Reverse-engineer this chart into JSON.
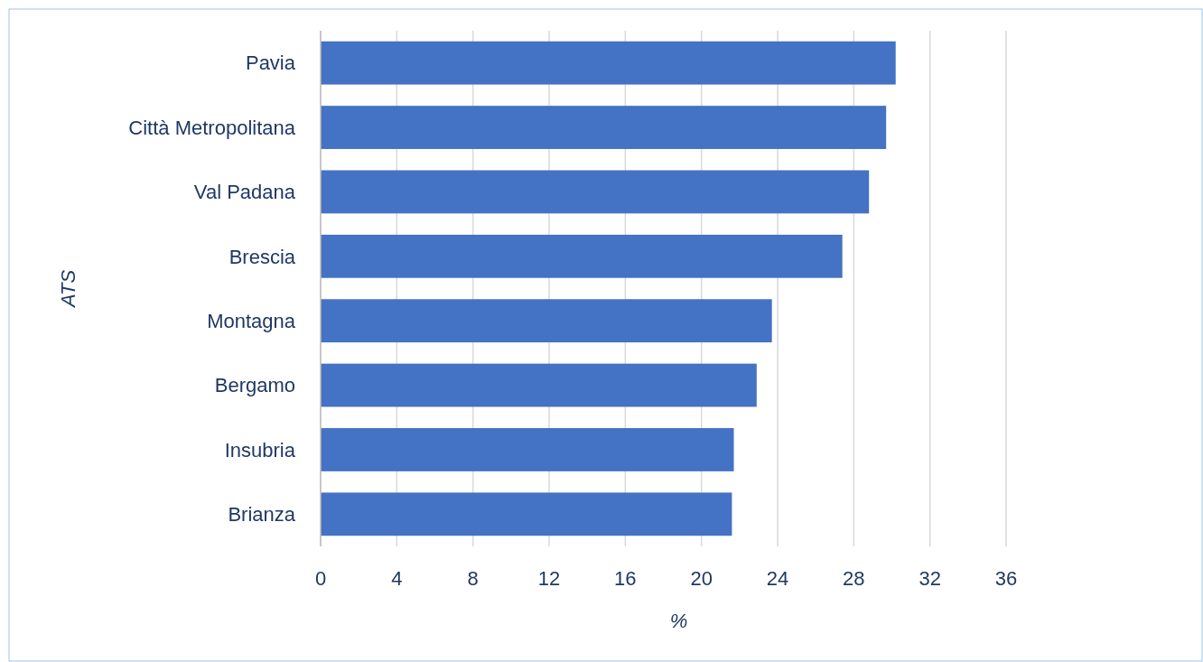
{
  "chart_data": {
    "type": "bar",
    "orientation": "horizontal",
    "xlabel": "%",
    "ylabel": "ATS",
    "categories": [
      "Pavia",
      "Città Metropolitana",
      "Val Padana",
      "Brescia",
      "Montagna",
      "Bergamo",
      "Insubria",
      "Brianza"
    ],
    "values": [
      30.2,
      29.7,
      28.8,
      27.4,
      23.7,
      22.9,
      21.7,
      21.6
    ],
    "color": "#4472c4",
    "xlim": [
      0,
      36
    ],
    "xticks": [
      0,
      4,
      8,
      12,
      16,
      20,
      24,
      28,
      32,
      36
    ],
    "grid": "x"
  }
}
